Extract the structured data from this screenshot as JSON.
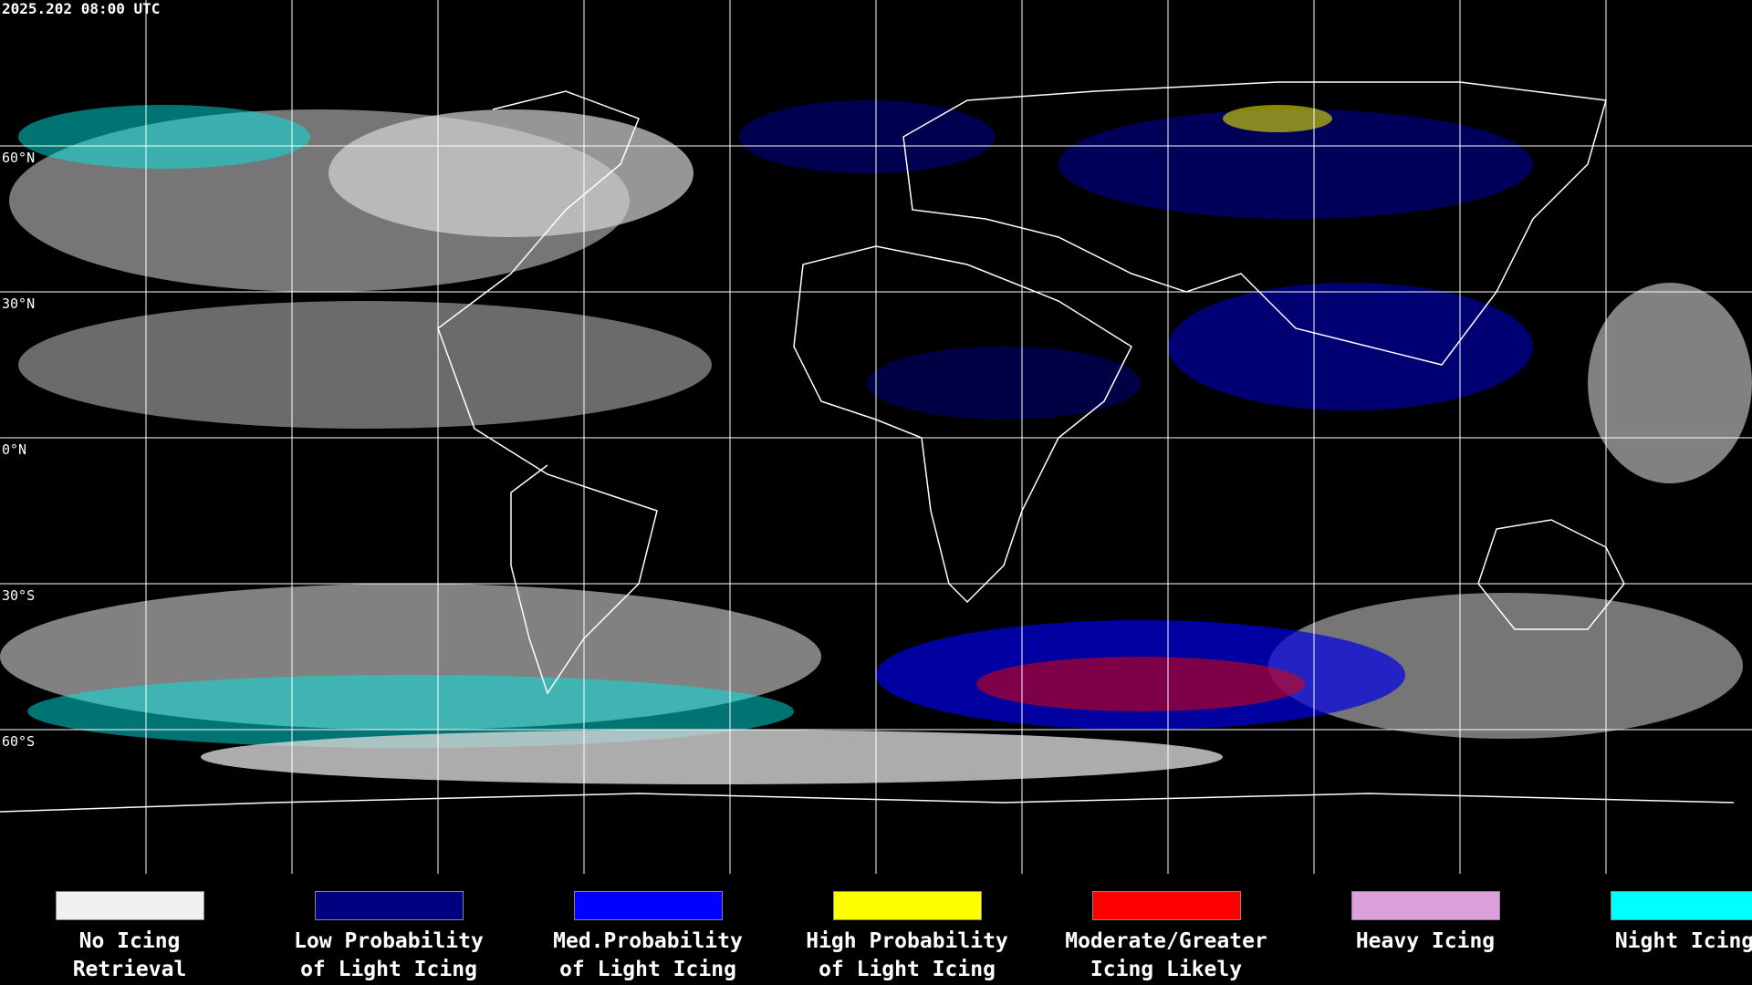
{
  "header": {
    "timestamp": "2025.202 08:00 UTC"
  },
  "map": {
    "lat_labels": [
      "60°N",
      "30°N",
      "0°N",
      "30°S",
      "60°S"
    ]
  },
  "legend": [
    {
      "color": "#f0f0f0",
      "lines": [
        "No Icing",
        "Retrieval"
      ]
    },
    {
      "color": "#000080",
      "lines": [
        "Low Probability",
        "of Light Icing"
      ]
    },
    {
      "color": "#0000ff",
      "lines": [
        "Med.Probability",
        "of Light Icing"
      ]
    },
    {
      "color": "#ffff00",
      "lines": [
        "High Probability",
        "of Light Icing"
      ]
    },
    {
      "color": "#ff0000",
      "lines": [
        "Moderate/Greater",
        "Icing Likely"
      ]
    },
    {
      "color": "#dda0dd",
      "lines": [
        "Heavy Icing"
      ]
    },
    {
      "color": "#00ffff",
      "lines": [
        "Night Icing"
      ]
    }
  ]
}
